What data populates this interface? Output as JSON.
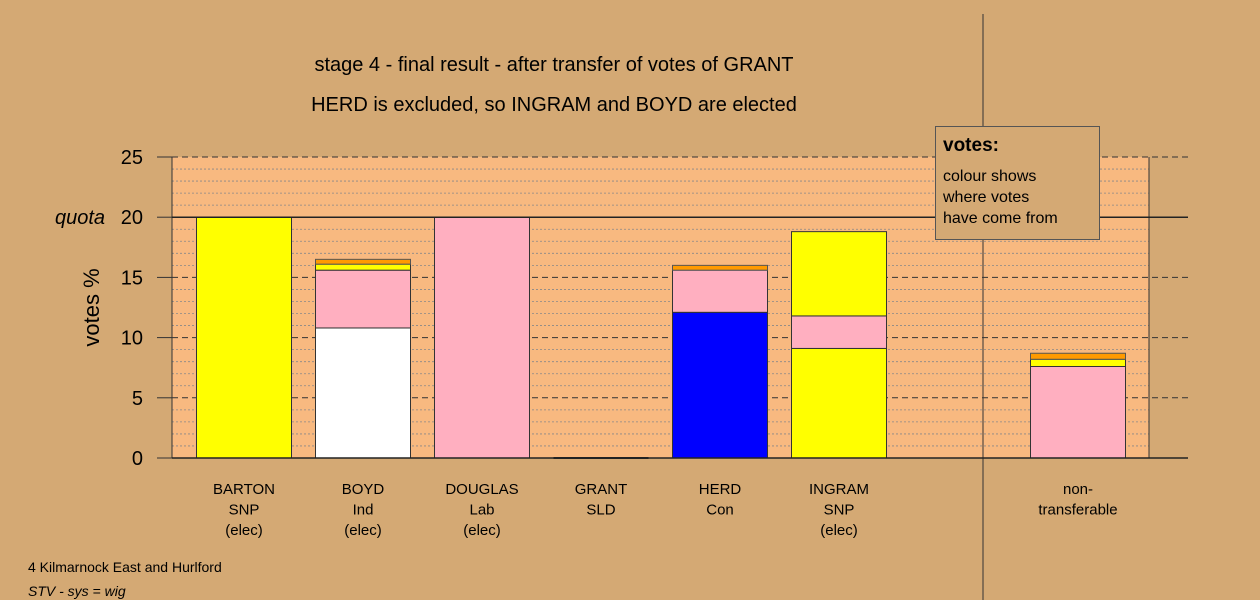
{
  "title_line1": "stage 4 - final result - after transfer of votes of GRANT",
  "title_line2": "HERD is excluded, so INGRAM and BOYD are elected",
  "legend": {
    "title": "votes:",
    "lines": [
      "colour shows",
      "where votes",
      "have come from"
    ]
  },
  "footer": {
    "line1": "4 Kilmarnock East and Hurlford",
    "line2": "STV - sys = wig"
  },
  "colors": {
    "background": "#d4a974",
    "plot_background": "#f8b980",
    "SNP": "#ffff00",
    "Ind": "#ffffff",
    "Lab": "#ffafc0",
    "Con": "#0000ff",
    "SLD": "#ff9a00",
    "SLD_edge": "#e86a2a"
  },
  "chart_data": {
    "type": "bar",
    "stacked": true,
    "ylabel": "votes %",
    "ylim": [
      0,
      25
    ],
    "yticks": [
      0,
      5,
      10,
      15,
      20,
      25
    ],
    "quota_label": "quota",
    "quota": 20,
    "grid": true,
    "legend_position": "top-right",
    "categories": [
      {
        "lines": [
          "BARTON",
          "SNP",
          "(elec)"
        ],
        "segments": [
          {
            "from": "SNP",
            "value": 20.0
          }
        ]
      },
      {
        "lines": [
          "BOYD",
          "Ind",
          "(elec)"
        ],
        "segments": [
          {
            "from": "Ind",
            "value": 10.8
          },
          {
            "from": "Lab",
            "value": 4.8
          },
          {
            "from": "SNP",
            "value": 0.5
          },
          {
            "from": "SLD",
            "value": 0.4
          }
        ]
      },
      {
        "lines": [
          "DOUGLAS",
          "Lab",
          "(elec)"
        ],
        "segments": [
          {
            "from": "Lab",
            "value": 20.0
          }
        ]
      },
      {
        "lines": [
          "GRANT",
          "SLD"
        ],
        "segments": []
      },
      {
        "lines": [
          "HERD",
          "Con"
        ],
        "segments": [
          {
            "from": "Con",
            "value": 12.1
          },
          {
            "from": "Lab",
            "value": 3.5
          },
          {
            "from": "SLD",
            "value": 0.4
          }
        ]
      },
      {
        "lines": [
          "INGRAM",
          "SNP",
          "(elec)"
        ],
        "segments": [
          {
            "from": "SNP",
            "value": 9.1
          },
          {
            "from": "Lab",
            "value": 2.7
          },
          {
            "from": "SNP",
            "value": 7.0
          }
        ]
      },
      {
        "lines": [
          "non-",
          "transferable"
        ],
        "segments": [
          {
            "from": "Lab",
            "value": 7.6
          },
          {
            "from": "SNP",
            "value": 0.6
          },
          {
            "from": "SLD",
            "value": 0.5
          }
        ]
      }
    ]
  }
}
